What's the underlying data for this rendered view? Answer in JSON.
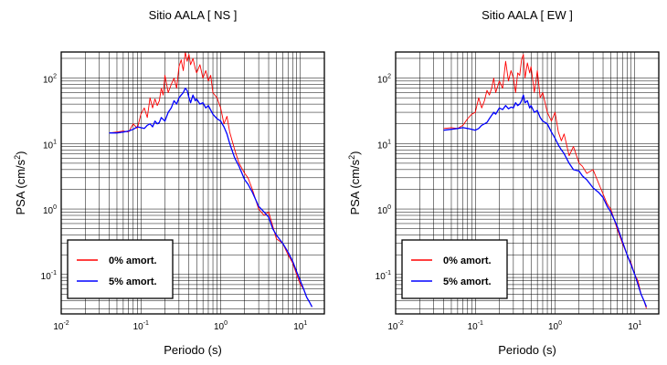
{
  "chart_data": [
    {
      "type": "line",
      "title": "Sitio AALA [ NS ]",
      "xlabel": "Periodo (s)",
      "ylabel_base": "PSA (cm/s",
      "ylabel_exp": "2",
      "ylabel_close": ")",
      "xscale": "log",
      "yscale": "log",
      "xlim": [
        0.01,
        20
      ],
      "ylim": [
        0.025,
        250
      ],
      "grid": true,
      "legend_position": "bottom-left",
      "x_ticks": [
        {
          "base": "10",
          "exp": "-2",
          "value": 0.01
        },
        {
          "base": "10",
          "exp": "-1",
          "value": 0.1
        },
        {
          "base": "10",
          "exp": "0",
          "value": 1
        },
        {
          "base": "10",
          "exp": "1",
          "value": 10
        }
      ],
      "y_ticks": [
        {
          "base": "10",
          "exp": "-1",
          "value": 0.1
        },
        {
          "base": "10",
          "exp": "0",
          "value": 1
        },
        {
          "base": "10",
          "exp": "1",
          "value": 10
        },
        {
          "base": "10",
          "exp": "2",
          "value": 100
        }
      ],
      "series": [
        {
          "name": "0% amort.",
          "color": "#ff0000",
          "x": [
            0.04,
            0.05,
            0.06,
            0.07,
            0.08,
            0.09,
            0.1,
            0.11,
            0.12,
            0.13,
            0.14,
            0.15,
            0.16,
            0.17,
            0.18,
            0.19,
            0.2,
            0.22,
            0.24,
            0.26,
            0.28,
            0.3,
            0.32,
            0.34,
            0.36,
            0.38,
            0.4,
            0.42,
            0.45,
            0.48,
            0.5,
            0.55,
            0.6,
            0.65,
            0.7,
            0.75,
            0.8,
            0.9,
            1.0,
            1.1,
            1.2,
            1.3,
            1.5,
            1.7,
            2.0,
            2.2,
            2.5,
            3.0,
            3.5,
            4.0,
            4.5,
            5.0,
            6.0,
            7.0,
            8.0,
            9.0,
            10.0,
            11.0,
            12.0,
            13.0,
            14.0
          ],
          "y": [
            14.5,
            15.0,
            15.5,
            15.0,
            20.0,
            17.0,
            28.0,
            35.0,
            25.0,
            50.0,
            35.0,
            48.0,
            38.0,
            45.0,
            70.0,
            55.0,
            110.0,
            60.0,
            80.0,
            100.0,
            70.0,
            150.0,
            190.0,
            130.0,
            250.0,
            180.0,
            230.0,
            160.0,
            200.0,
            140.0,
            120.0,
            160.0,
            100.0,
            130.0,
            90.0,
            110.0,
            60.0,
            50.0,
            35.0,
            20.0,
            26.0,
            15.0,
            8.0,
            5.0,
            3.5,
            3.0,
            2.0,
            1.0,
            0.8,
            0.9,
            0.55,
            0.35,
            0.3,
            0.2,
            0.15,
            0.1,
            0.07,
            0.06,
            0.045,
            0.038,
            0.032
          ]
        },
        {
          "name": "5% amort.",
          "color": "#0000ff",
          "x": [
            0.04,
            0.05,
            0.06,
            0.07,
            0.08,
            0.09,
            0.1,
            0.11,
            0.12,
            0.13,
            0.14,
            0.15,
            0.16,
            0.17,
            0.18,
            0.2,
            0.22,
            0.24,
            0.26,
            0.28,
            0.3,
            0.32,
            0.34,
            0.36,
            0.38,
            0.4,
            0.42,
            0.45,
            0.48,
            0.5,
            0.55,
            0.6,
            0.65,
            0.7,
            0.8,
            0.9,
            1.0,
            1.1,
            1.2,
            1.3,
            1.5,
            1.7,
            2.0,
            2.2,
            2.5,
            3.0,
            3.5,
            4.0,
            4.5,
            5.0,
            6.0,
            7.0,
            8.0,
            9.0,
            10.0,
            11.0,
            12.0,
            13.0,
            14.0
          ],
          "y": [
            14.5,
            14.5,
            15.0,
            15.5,
            16.5,
            18.0,
            17.5,
            17.0,
            19.0,
            20.0,
            18.0,
            22.0,
            20.0,
            21.0,
            25.0,
            22.0,
            30.0,
            35.0,
            45.0,
            40.0,
            50.0,
            55.0,
            60.0,
            70.0,
            65.0,
            50.0,
            42.0,
            55.0,
            45.0,
            48.0,
            40.0,
            42.0,
            35.0,
            38.0,
            28.0,
            24.0,
            22.0,
            18.0,
            14.0,
            10.0,
            6.0,
            4.5,
            2.8,
            2.4,
            1.8,
            1.1,
            0.9,
            0.75,
            0.5,
            0.4,
            0.3,
            0.22,
            0.16,
            0.11,
            0.08,
            0.06,
            0.045,
            0.038,
            0.032
          ]
        }
      ]
    },
    {
      "type": "line",
      "title": "Sitio AALA [ EW ]",
      "xlabel": "Periodo (s)",
      "ylabel_base": "PSA (cm/s",
      "ylabel_exp": "2",
      "ylabel_close": ")",
      "xscale": "log",
      "yscale": "log",
      "xlim": [
        0.01,
        20
      ],
      "ylim": [
        0.025,
        250
      ],
      "grid": true,
      "legend_position": "bottom-left",
      "x_ticks": [
        {
          "base": "10",
          "exp": "-2",
          "value": 0.01
        },
        {
          "base": "10",
          "exp": "-1",
          "value": 0.1
        },
        {
          "base": "10",
          "exp": "0",
          "value": 1
        },
        {
          "base": "10",
          "exp": "1",
          "value": 10
        }
      ],
      "y_ticks": [
        {
          "base": "10",
          "exp": "-1",
          "value": 0.1
        },
        {
          "base": "10",
          "exp": "0",
          "value": 1
        },
        {
          "base": "10",
          "exp": "1",
          "value": 10
        },
        {
          "base": "10",
          "exp": "2",
          "value": 100
        }
      ],
      "series": [
        {
          "name": "0% amort.",
          "color": "#ff0000",
          "x": [
            0.04,
            0.05,
            0.06,
            0.07,
            0.08,
            0.09,
            0.1,
            0.11,
            0.12,
            0.13,
            0.14,
            0.15,
            0.16,
            0.17,
            0.18,
            0.2,
            0.22,
            0.24,
            0.26,
            0.28,
            0.3,
            0.32,
            0.34,
            0.36,
            0.38,
            0.4,
            0.42,
            0.45,
            0.48,
            0.5,
            0.55,
            0.6,
            0.65,
            0.7,
            0.8,
            0.9,
            1.0,
            1.1,
            1.2,
            1.3,
            1.5,
            1.7,
            2.0,
            2.2,
            2.5,
            3.0,
            3.5,
            4.0,
            4.5,
            5.0,
            6.0,
            7.0,
            8.0,
            9.0,
            10.0,
            11.0,
            12.0,
            13.0,
            14.0
          ],
          "y": [
            17.0,
            17.5,
            17.0,
            19.0,
            24.0,
            28.0,
            30.0,
            50.0,
            35.0,
            45.0,
            65.0,
            55.0,
            70.0,
            100.0,
            60.0,
            90.0,
            70.0,
            180.0,
            90.0,
            130.0,
            100.0,
            60.0,
            120.0,
            110.0,
            190.0,
            230.0,
            100.0,
            170.0,
            120.0,
            150.0,
            60.0,
            130.0,
            50.0,
            60.0,
            30.0,
            22.0,
            30.0,
            15.0,
            11.0,
            14.0,
            6.5,
            9.0,
            5.0,
            4.5,
            3.5,
            4.0,
            2.5,
            1.7,
            1.2,
            1.0,
            0.5,
            0.3,
            0.2,
            0.15,
            0.1,
            0.08,
            0.05,
            0.04,
            0.03
          ]
        },
        {
          "name": "5% amort.",
          "color": "#0000ff",
          "x": [
            0.04,
            0.05,
            0.06,
            0.07,
            0.08,
            0.09,
            0.1,
            0.11,
            0.12,
            0.13,
            0.14,
            0.15,
            0.16,
            0.17,
            0.18,
            0.2,
            0.22,
            0.24,
            0.26,
            0.28,
            0.3,
            0.32,
            0.34,
            0.36,
            0.38,
            0.4,
            0.42,
            0.45,
            0.48,
            0.5,
            0.55,
            0.6,
            0.65,
            0.7,
            0.8,
            0.9,
            1.0,
            1.1,
            1.2,
            1.3,
            1.5,
            1.7,
            2.0,
            2.2,
            2.5,
            3.0,
            3.5,
            4.0,
            4.5,
            5.0,
            6.0,
            7.0,
            8.0,
            9.0,
            10.0,
            11.0,
            12.0,
            13.0,
            14.0
          ],
          "y": [
            16.0,
            16.5,
            17.0,
            17.5,
            17.0,
            16.5,
            16.0,
            17.0,
            19.0,
            20.0,
            21.0,
            24.0,
            27.0,
            30.0,
            28.0,
            35.0,
            33.0,
            38.0,
            34.0,
            36.0,
            35.0,
            42.0,
            38.0,
            40.0,
            45.0,
            55.0,
            42.0,
            45.0,
            35.0,
            38.0,
            30.0,
            32.0,
            25.0,
            22.0,
            20.0,
            15.0,
            12.0,
            9.5,
            8.0,
            7.0,
            5.0,
            4.0,
            3.8,
            3.2,
            2.8,
            2.1,
            1.8,
            1.5,
            1.1,
            0.9,
            0.55,
            0.32,
            0.2,
            0.14,
            0.1,
            0.07,
            0.05,
            0.04,
            0.032
          ]
        }
      ]
    }
  ]
}
